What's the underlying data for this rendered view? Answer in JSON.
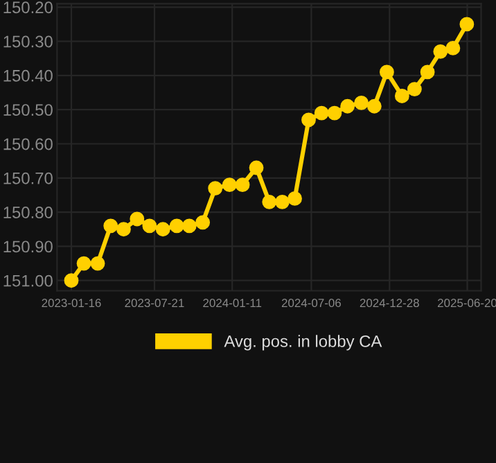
{
  "chart_data": {
    "type": "line",
    "x": [
      "2023-01-16",
      "2023-02-13",
      "2023-03-16",
      "2023-04-14",
      "2023-05-13",
      "2023-06-12",
      "2023-07-10",
      "2023-08-09",
      "2023-09-09",
      "2023-10-07",
      "2023-11-06",
      "2023-12-04",
      "2024-01-05",
      "2024-02-03",
      "2024-03-05",
      "2024-04-03",
      "2024-05-02",
      "2024-05-30",
      "2024-06-30",
      "2024-07-29",
      "2024-08-27",
      "2024-09-25",
      "2024-10-26",
      "2024-11-24",
      "2024-12-22",
      "2025-01-25",
      "2025-02-22",
      "2025-03-23",
      "2025-04-21",
      "2025-05-19",
      "2025-06-19"
    ],
    "series": [
      {
        "name": "Avg. pos. in lobby CA",
        "color": "#ffd000",
        "values": [
          151.0,
          150.95,
          150.95,
          150.84,
          150.85,
          150.82,
          150.84,
          150.85,
          150.84,
          150.84,
          150.83,
          150.73,
          150.72,
          150.72,
          150.67,
          150.77,
          150.77,
          150.76,
          150.53,
          150.51,
          150.51,
          150.49,
          150.48,
          150.49,
          150.39,
          150.46,
          150.44,
          150.39,
          150.33,
          150.32,
          150.25
        ]
      }
    ],
    "xlim": [
      "2022-12-15",
      "2025-07-21"
    ],
    "xticks": [
      "2023-01-16",
      "2023-07-21",
      "2024-01-11",
      "2024-07-06",
      "2024-12-28",
      "2025-06-20"
    ],
    "ylim": [
      151.03,
      150.19
    ],
    "yticks": [
      {
        "value": 150.2,
        "label": "150.20"
      },
      {
        "value": 150.3,
        "label": "150.30"
      },
      {
        "value": 150.4,
        "label": "150.40"
      },
      {
        "value": 150.5,
        "label": "150.50"
      },
      {
        "value": 150.6,
        "label": "150.60"
      },
      {
        "value": 150.7,
        "label": "150.70"
      },
      {
        "value": 150.8,
        "label": "150.80"
      },
      {
        "value": 150.9,
        "label": "150.90"
      },
      {
        "value": 151.0,
        "label": "151.00"
      }
    ],
    "grid": true,
    "legend": "bottom",
    "marker": "circle",
    "line_style": "solid"
  }
}
